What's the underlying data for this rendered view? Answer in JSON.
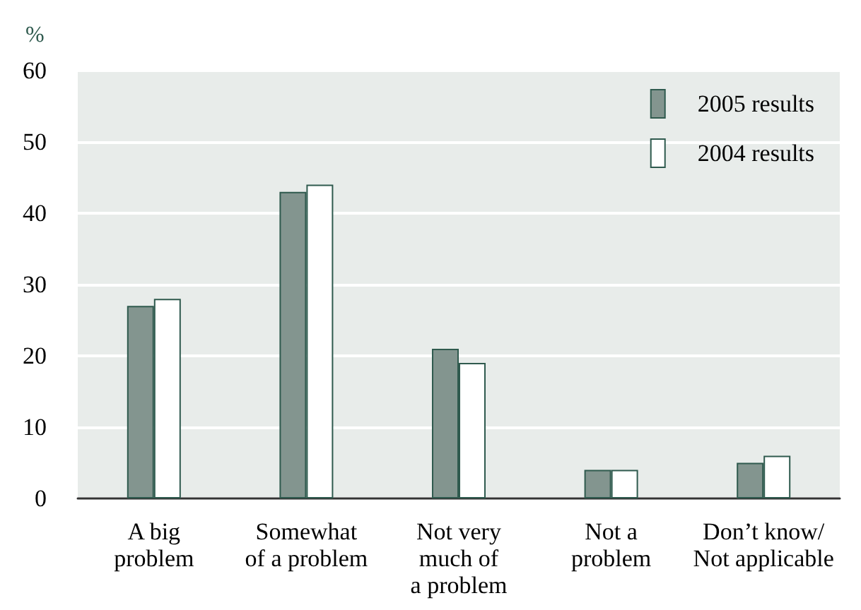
{
  "chart_data": {
    "type": "bar",
    "ylabel": "%",
    "categories": [
      "A big\nproblem",
      "Somewhat\nof a problem",
      "Not very\nmuch of\na problem",
      "Not a\nproblem",
      "Don’t know/\nNot applicable"
    ],
    "series": [
      {
        "name": "2005 results",
        "color": "#83958f",
        "values": [
          27,
          43,
          21,
          4,
          5
        ]
      },
      {
        "name": "2004 results",
        "color": "#ffffff",
        "values": [
          28,
          44,
          19,
          4,
          6
        ]
      }
    ],
    "ylim": [
      0,
      60
    ],
    "yticks": [
      0,
      10,
      20,
      30,
      40,
      50,
      60
    ],
    "grid": "y",
    "legend": "top right"
  }
}
